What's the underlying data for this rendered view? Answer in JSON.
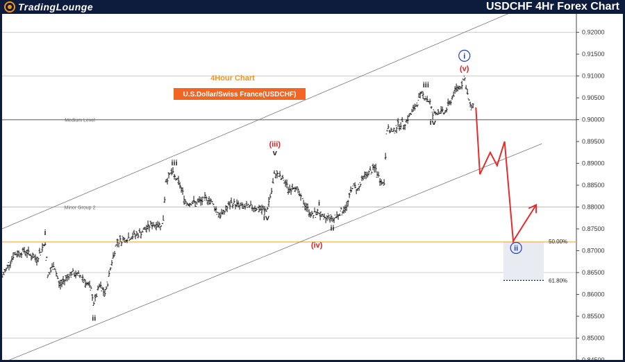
{
  "header": {
    "brand_part1": "TradingLounge",
    "title": "USDCHF 4Hr Forex Chart"
  },
  "chart_data": {
    "type": "candlestick",
    "title": "4Hour Chart",
    "subtitle": "U.S.Dollar/Swiss France(USDCHF)",
    "y_axis": {
      "ticks": [
        "0.92000",
        "0.91500",
        "0.91000",
        "0.90500",
        "0.90000",
        "0.89500",
        "0.89000",
        "0.88500",
        "0.88000",
        "0.87500",
        "0.87000",
        "0.86500",
        "0.86000",
        "0.85500",
        "0.85000",
        "0.84500"
      ],
      "ylim": [
        0.845,
        0.922
      ]
    },
    "levels": [
      {
        "label": "Medium Level",
        "value": 0.9,
        "color": "#888888"
      },
      {
        "label": "Minor Group 2",
        "value": 0.88,
        "color": "#bbbbbb"
      },
      {
        "label": "",
        "value": 0.91,
        "color": "#cccccc"
      },
      {
        "label": "",
        "value": 0.92,
        "color": "#cccccc"
      },
      {
        "label": "",
        "value": 0.865,
        "color": "#cccccc"
      },
      {
        "label": "",
        "value": 0.85,
        "color": "#cccccc"
      }
    ],
    "fib_levels": [
      {
        "label": "50.00%",
        "value": 0.872,
        "color": "#f7a531"
      },
      {
        "label": "61.80%",
        "value": 0.8632,
        "color": "#222222"
      }
    ],
    "wave_labels": [
      {
        "text": "i",
        "color": "#222222",
        "x_frac": 0.075,
        "price": 0.8736
      },
      {
        "text": "ii",
        "color": "#222222",
        "x_frac": 0.16,
        "price": 0.854
      },
      {
        "text": "iii",
        "color": "#222222",
        "x_frac": 0.3,
        "price": 0.8895
      },
      {
        "text": "iv",
        "color": "#222222",
        "x_frac": 0.46,
        "price": 0.877
      },
      {
        "text": "v",
        "color": "#222222",
        "x_frac": 0.475,
        "price": 0.8918
      },
      {
        "text": "(iii)",
        "color": "#e02020",
        "x_frac": 0.475,
        "price": 0.8938
      },
      {
        "text": "i",
        "color": "#222222",
        "x_frac": 0.552,
        "price": 0.8803
      },
      {
        "text": "ii",
        "color": "#222222",
        "x_frac": 0.575,
        "price": 0.8746
      },
      {
        "text": "(iv)",
        "color": "#e02020",
        "x_frac": 0.548,
        "price": 0.8707
      },
      {
        "text": "iii",
        "color": "#222222",
        "x_frac": 0.738,
        "price": 0.9074
      },
      {
        "text": "iv",
        "color": "#222222",
        "x_frac": 0.75,
        "price": 0.8988
      },
      {
        "text": "(v)",
        "color": "#e02020",
        "x_frac": 0.805,
        "price": 0.9111
      },
      {
        "text": "i",
        "color": "#1f3ec0",
        "x_frac": 0.805,
        "price": 0.914,
        "circled": true
      },
      {
        "text": "ii",
        "color": "#1f3ec0",
        "x_frac": 0.895,
        "price": 0.87,
        "circled": true
      }
    ],
    "projection": {
      "color": "#e52a2a",
      "path": [
        [
          0.825,
          0.9028
        ],
        [
          0.832,
          0.8875
        ],
        [
          0.85,
          0.8925
        ],
        [
          0.862,
          0.8895
        ],
        [
          0.875,
          0.895
        ],
        [
          0.89,
          0.8722
        ],
        [
          0.93,
          0.8805
        ]
      ]
    },
    "channel": {
      "color": "#777777",
      "upper": [
        [
          0.0,
          0.875
        ],
        [
          0.93,
          0.927
        ]
      ],
      "lower": [
        [
          0.0,
          0.8443
        ],
        [
          0.94,
          0.8945
        ]
      ]
    },
    "candles_guide": [
      [
        0.0,
        0.864
      ],
      [
        0.02,
        0.869
      ],
      [
        0.04,
        0.87
      ],
      [
        0.06,
        0.868
      ],
      [
        0.075,
        0.872
      ],
      [
        0.08,
        0.864
      ],
      [
        0.09,
        0.867
      ],
      [
        0.1,
        0.862
      ],
      [
        0.12,
        0.865
      ],
      [
        0.14,
        0.864
      ],
      [
        0.155,
        0.861
      ],
      [
        0.16,
        0.858
      ],
      [
        0.17,
        0.862
      ],
      [
        0.18,
        0.86
      ],
      [
        0.19,
        0.867
      ],
      [
        0.2,
        0.872
      ],
      [
        0.22,
        0.873
      ],
      [
        0.24,
        0.874
      ],
      [
        0.26,
        0.876
      ],
      [
        0.28,
        0.876
      ],
      [
        0.285,
        0.886
      ],
      [
        0.295,
        0.888
      ],
      [
        0.3,
        0.887
      ],
      [
        0.31,
        0.885
      ],
      [
        0.32,
        0.881
      ],
      [
        0.34,
        0.881
      ],
      [
        0.36,
        0.882
      ],
      [
        0.38,
        0.878
      ],
      [
        0.4,
        0.881
      ],
      [
        0.42,
        0.88
      ],
      [
        0.44,
        0.88
      ],
      [
        0.46,
        0.879
      ],
      [
        0.47,
        0.884
      ],
      [
        0.475,
        0.888
      ],
      [
        0.49,
        0.886
      ],
      [
        0.5,
        0.884
      ],
      [
        0.51,
        0.885
      ],
      [
        0.52,
        0.882
      ],
      [
        0.53,
        0.88
      ],
      [
        0.54,
        0.878
      ],
      [
        0.55,
        0.879
      ],
      [
        0.56,
        0.877
      ],
      [
        0.57,
        0.878
      ],
      [
        0.575,
        0.877
      ],
      [
        0.59,
        0.879
      ],
      [
        0.6,
        0.88
      ],
      [
        0.61,
        0.885
      ],
      [
        0.62,
        0.884
      ],
      [
        0.63,
        0.887
      ],
      [
        0.64,
        0.888
      ],
      [
        0.65,
        0.889
      ],
      [
        0.655,
        0.887
      ],
      [
        0.665,
        0.885
      ],
      [
        0.67,
        0.898
      ],
      [
        0.68,
        0.897
      ],
      [
        0.69,
        0.899
      ],
      [
        0.7,
        0.899
      ],
      [
        0.71,
        0.901
      ],
      [
        0.72,
        0.903
      ],
      [
        0.73,
        0.906
      ],
      [
        0.738,
        0.905
      ],
      [
        0.745,
        0.904
      ],
      [
        0.75,
        0.901
      ],
      [
        0.76,
        0.902
      ],
      [
        0.77,
        0.9015
      ],
      [
        0.78,
        0.904
      ],
      [
        0.79,
        0.907
      ],
      [
        0.8,
        0.908
      ],
      [
        0.805,
        0.9098
      ],
      [
        0.81,
        0.906
      ],
      [
        0.815,
        0.903
      ],
      [
        0.82,
        0.903
      ]
    ]
  }
}
